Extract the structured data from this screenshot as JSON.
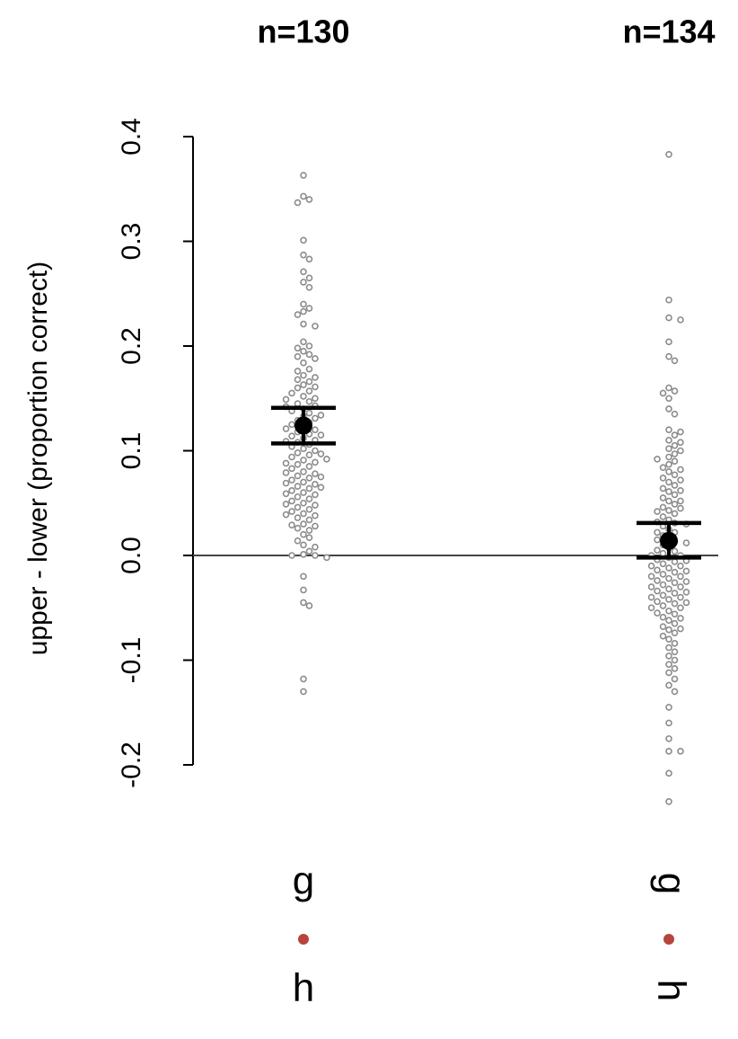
{
  "chart_data": {
    "type": "strip",
    "y_label": "upper - lower (proportion correct)",
    "ylim": [
      -0.2,
      0.4
    ],
    "yticks": [
      -0.2,
      -0.1,
      {
        "value": 0,
        "label": "0.0"
      },
      0.1,
      0.2,
      0.3,
      0.4
    ],
    "hline": 0,
    "point_color": "#8c8c8c",
    "mean_color": "#000000",
    "separator_color": "#b5453a",
    "groups": [
      {
        "n_label": "n=130",
        "top_label": "g",
        "bottom_label": "h",
        "label_rotation": 0,
        "mean": 0.124,
        "ci": [
          0.107,
          0.141
        ],
        "values": [
          0.363,
          0.343,
          0.34,
          0.337,
          0.301,
          0.287,
          0.283,
          0.271,
          0.265,
          0.261,
          0.256,
          0.24,
          0.236,
          0.233,
          0.23,
          0.221,
          0.219,
          0.204,
          0.2,
          0.198,
          0.195,
          0.192,
          0.19,
          0.184,
          0.178,
          0.172,
          0.17,
          0.168,
          0.166,
          0.163,
          0.16,
          0.157,
          0.155,
          0.152,
          0.15,
          0.147,
          0.145,
          0.143,
          0.14,
          0.138,
          0.136,
          0.133,
          0.131,
          0.129,
          0.127,
          0.125,
          0.122,
          0.12,
          0.118,
          0.116,
          0.114,
          0.112,
          0.11,
          0.108,
          0.106,
          0.104,
          0.102,
          0.1,
          0.098,
          0.096,
          0.094,
          0.091,
          0.089,
          0.087,
          0.085,
          0.083,
          0.08,
          0.078,
          0.076,
          0.074,
          0.072,
          0.07,
          0.068,
          0.066,
          0.064,
          0.062,
          0.06,
          0.058,
          0.056,
          0.054,
          0.052,
          0.05,
          0.048,
          0.046,
          0.044,
          0.042,
          0.04,
          0.038,
          0.036,
          0.034,
          0.03,
          0.028,
          0.026,
          0.024,
          0.02,
          0.017,
          0.014,
          0.01,
          0.008,
          0.004,
          0.001,
          0,
          0,
          -0.002,
          -0.02,
          -0.033,
          -0.045,
          -0.048,
          -0.118,
          -0.13,
          0.188,
          0.176,
          0.161,
          0.149,
          0.134,
          0.121,
          0.109,
          0.097,
          0.088,
          0.079,
          0.069,
          0.059,
          0.049,
          0.039,
          0.029,
          0.065,
          0.115,
          0.142,
          0.092,
          0.075
        ]
      },
      {
        "n_label": "n=134",
        "top_label": "g",
        "bottom_label": "h",
        "label_rotation": 90,
        "mean": 0.014,
        "ci": [
          -0.002,
          0.031
        ],
        "values": [
          0.383,
          0.244,
          0.227,
          0.225,
          0.204,
          0.19,
          0.186,
          0.16,
          0.157,
          0.155,
          0.15,
          0.14,
          0.135,
          0.12,
          0.118,
          0.115,
          0.11,
          0.105,
          0.102,
          0.1,
          0.097,
          0.094,
          0.09,
          0.087,
          0.084,
          0.08,
          0.077,
          0.074,
          0.07,
          0.067,
          0.064,
          0.061,
          0.058,
          0.055,
          0.052,
          0.049,
          0.046,
          0.043,
          0.04,
          0.037,
          0.034,
          0.031,
          0.028,
          0.025,
          0.022,
          0.019,
          0.016,
          0.013,
          0.01,
          0.007,
          0.004,
          0.002,
          0,
          -0.002,
          -0.004,
          -0.006,
          -0.008,
          -0.01,
          -0.012,
          -0.014,
          -0.016,
          -0.018,
          -0.02,
          -0.022,
          -0.024,
          -0.026,
          -0.028,
          -0.03,
          -0.032,
          -0.034,
          -0.036,
          -0.038,
          -0.04,
          -0.042,
          -0.044,
          -0.046,
          -0.048,
          -0.05,
          -0.053,
          -0.056,
          -0.059,
          -0.062,
          -0.065,
          -0.068,
          -0.071,
          -0.074,
          -0.077,
          -0.08,
          -0.084,
          -0.088,
          -0.092,
          -0.096,
          -0.1,
          -0.104,
          -0.108,
          -0.112,
          -0.118,
          -0.124,
          -0.13,
          -0.145,
          -0.16,
          -0.175,
          -0.187,
          -0.187,
          -0.208,
          -0.235,
          0.012,
          0.022,
          0.032,
          0.042,
          0.052,
          0.062,
          0.072,
          0.082,
          0.092,
          0.108,
          0.03,
          0.0,
          -0.01,
          -0.02,
          -0.03,
          -0.04,
          -0.05,
          -0.06,
          -0.07,
          -0.025,
          -0.015,
          -0.005,
          0.005,
          0.015,
          -0.045,
          -0.035,
          -0.055,
          0.045
        ]
      }
    ]
  }
}
